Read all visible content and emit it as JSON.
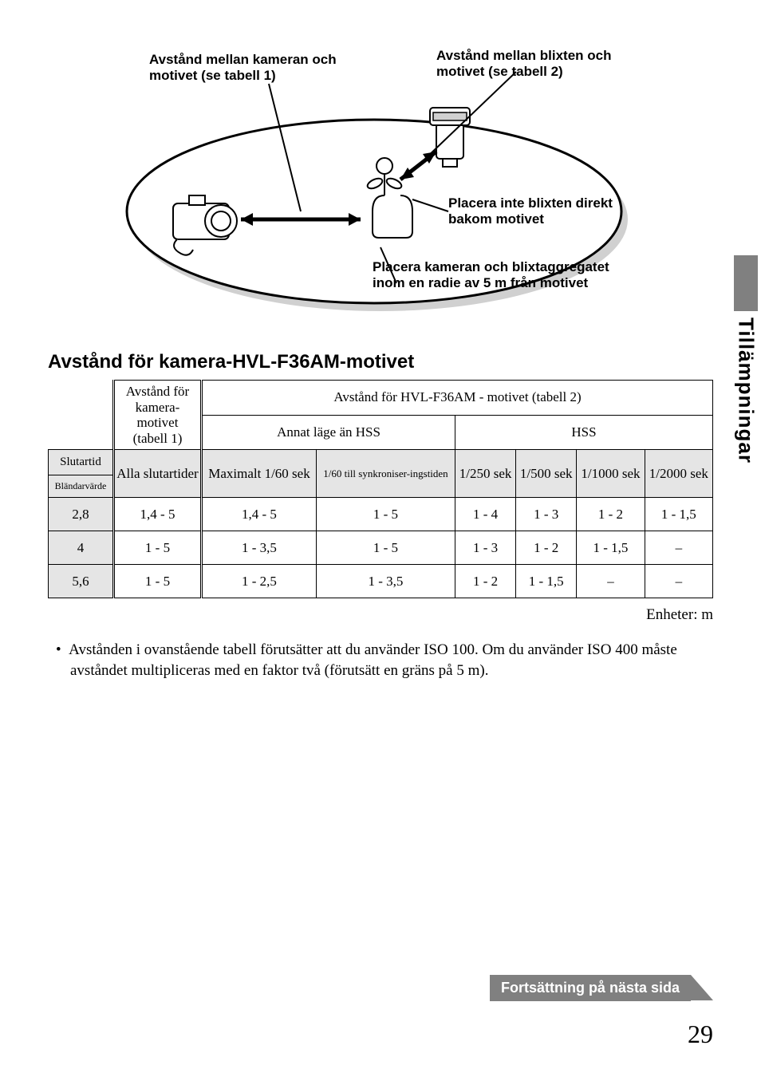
{
  "diagram": {
    "callout_top_left": "Avstånd mellan kameran och motivet (se tabell 1)",
    "callout_top_right": "Avstånd mellan blixten och motivet (se tabell 2)",
    "callout_mid_right": "Placera inte blixten direkt bakom motivet",
    "callout_bottom": "Placera kameran och blixtaggregatet inom en radie av 5 m från motivet"
  },
  "section_title": "Avstånd för kamera-HVL-F36AM-motivet",
  "side_tab": "Tillämpningar",
  "table": {
    "hdr_cam_subject": "Avstånd för kamera-motivet (tabell 1)",
    "hdr_flash_subject": "Avstånd för HVL-F36AM - motivet (tabell 2)",
    "hdr_non_hss": "Annat läge än HSS",
    "hdr_hss": "HSS",
    "row_label_shutter": "Slutartid",
    "row_label_aperture": "Bländarvärde",
    "col_all_shutter": "Alla slutartider",
    "col_max_1_60": "Maximalt 1/60 sek",
    "col_1_60_to_sync": "1/60 till synkroniser-ingstiden",
    "col_1_250": "1/250 sek",
    "col_1_500": "1/500 sek",
    "col_1_1000": "1/1000 sek",
    "col_1_2000": "1/2000 sek",
    "rows": [
      {
        "ap": "2,8",
        "cam": "1,4 - 5",
        "c1": "1,4 - 5",
        "c2": "1 - 5",
        "c3": "1 - 4",
        "c4": "1 - 3",
        "c5": "1 - 2",
        "c6": "1 - 1,5"
      },
      {
        "ap": "4",
        "cam": "1 - 5",
        "c1": "1 - 3,5",
        "c2": "1 - 5",
        "c3": "1 - 3",
        "c4": "1 - 2",
        "c5": "1 - 1,5",
        "c6": "–"
      },
      {
        "ap": "5,6",
        "cam": "1 - 5",
        "c1": "1 - 2,5",
        "c2": "1 - 3,5",
        "c3": "1 - 2",
        "c4": "1 - 1,5",
        "c5": "–",
        "c6": "–"
      }
    ],
    "units": "Enheter: m"
  },
  "note_bullet": "•",
  "note_text": "Avstånden i ovanstående tabell förutsätter att du använder ISO 100. Om du använder ISO 400 måste avståndet multipliceras med en faktor två (förutsätt en gräns på 5 m).",
  "continue_text": "Fortsättning på nästa sida",
  "page_number": "29",
  "colors": {
    "gray_cell": "#e5e5e5",
    "banner_bg": "#808080",
    "banner_fg": "#ffffff"
  }
}
